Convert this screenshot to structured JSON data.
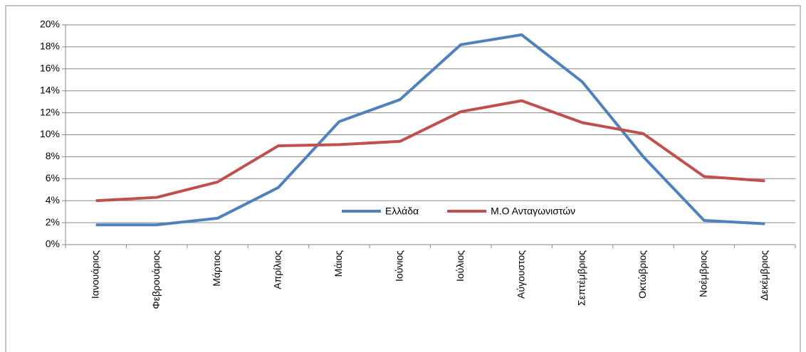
{
  "chart_data": {
    "type": "line",
    "categories": [
      "Ιανουάριος",
      "Φεβρουάριος",
      "Μάρτιος",
      "Απρίλιος",
      "Μάιος",
      "Ιούνιος",
      "Ιούλιος",
      "Αύγουστος",
      "Σεπτέμβριος",
      "Οκτώβριος",
      "Νοέμβριος",
      "Δεκέμβριος"
    ],
    "series": [
      {
        "name": "Ελλάδα",
        "color": "#4f81bd",
        "values": [
          1.8,
          1.8,
          2.4,
          5.2,
          11.2,
          13.2,
          18.2,
          19.1,
          14.8,
          8.0,
          2.2,
          1.9
        ]
      },
      {
        "name": "Μ.Ο Ανταγωνιστών",
        "color": "#c0504d",
        "values": [
          4.0,
          4.3,
          5.7,
          9.0,
          9.1,
          9.4,
          12.1,
          13.1,
          11.1,
          10.1,
          6.2,
          5.8
        ]
      }
    ],
    "ylim": [
      0,
      20
    ],
    "yticks": [
      {
        "value": 0,
        "label": "0%"
      },
      {
        "value": 2,
        "label": "2%"
      },
      {
        "value": 4,
        "label": "4%"
      },
      {
        "value": 6,
        "label": "6%"
      },
      {
        "value": 8,
        "label": "8%"
      },
      {
        "value": 10,
        "label": "10%"
      },
      {
        "value": 12,
        "label": "12%"
      },
      {
        "value": 14,
        "label": "14%"
      },
      {
        "value": 16,
        "label": "16%"
      },
      {
        "value": 18,
        "label": "18%"
      },
      {
        "value": 20,
        "label": "20%"
      }
    ],
    "grid": true
  }
}
